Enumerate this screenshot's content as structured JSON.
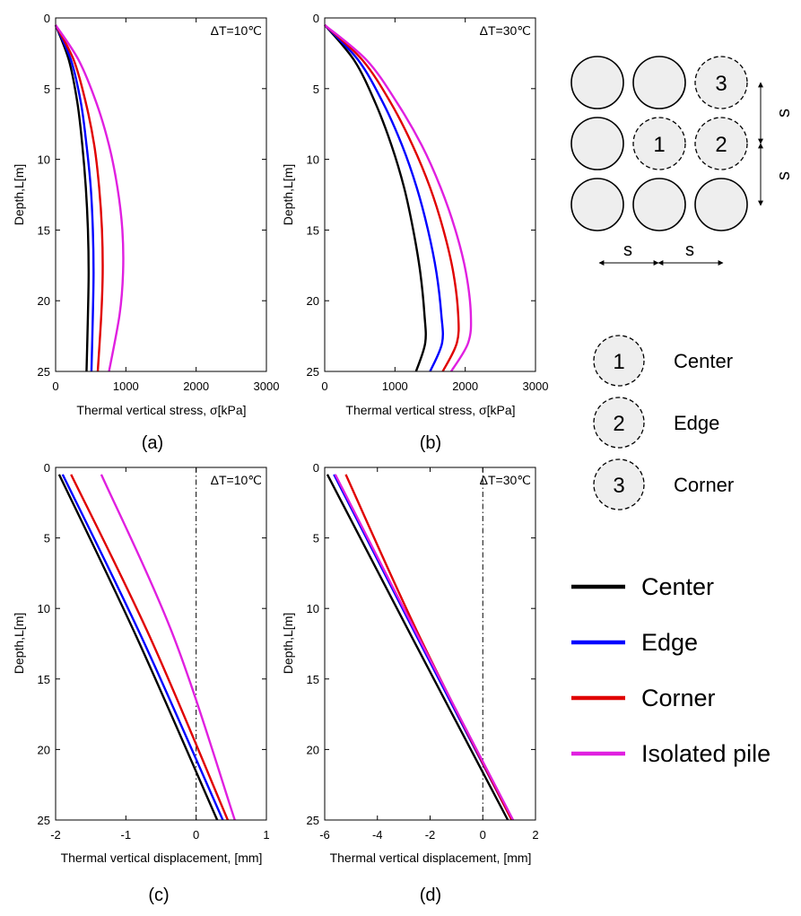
{
  "colors": {
    "Center": "#000000",
    "Edge": "#0000ff",
    "Corner": "#e00000",
    "Isolated pile": "#e020e0",
    "pile_fill": "#eeeeee"
  },
  "chart_data": [
    {
      "id": "a",
      "type": "line",
      "caption": "(a)",
      "annotation": "ΔT=10℃",
      "xlabel": "Thermal vertical stress, σ[kPa]",
      "ylabel": "Depth,L[m]",
      "xlim": [
        0,
        3000
      ],
      "ylim": [
        0,
        25
      ],
      "y_inverted": true,
      "xticks": [
        0,
        1000,
        2000,
        3000
      ],
      "yticks": [
        0,
        5,
        10,
        15,
        20,
        25
      ],
      "series": [
        {
          "name": "Center",
          "x": [
            0,
            190,
            310,
            380,
            430,
            460,
            470,
            460,
            440
          ],
          "y": [
            0.5,
            3,
            6,
            9,
            12,
            15,
            18,
            21,
            25
          ]
        },
        {
          "name": "Edge",
          "x": [
            0,
            220,
            360,
            440,
            500,
            530,
            540,
            530,
            510
          ],
          "y": [
            0.5,
            3,
            6,
            9,
            12,
            15,
            18,
            21,
            25
          ]
        },
        {
          "name": "Corner",
          "x": [
            0,
            260,
            430,
            550,
            620,
            660,
            670,
            650,
            600
          ],
          "y": [
            0.5,
            3,
            6,
            9,
            12,
            15,
            18,
            21,
            25
          ]
        },
        {
          "name": "Isolated pile",
          "x": [
            0,
            330,
            580,
            760,
            880,
            950,
            960,
            910,
            760
          ],
          "y": [
            0.5,
            3,
            6,
            9,
            12,
            15,
            18,
            21,
            25
          ]
        }
      ]
    },
    {
      "id": "b",
      "type": "line",
      "caption": "(b)",
      "annotation": "ΔT=30℃",
      "xlabel": "Thermal vertical stress, σ[kPa]",
      "ylabel": "Depth,L[m]",
      "xlim": [
        0,
        3000
      ],
      "ylim": [
        0,
        25
      ],
      "y_inverted": true,
      "xticks": [
        0,
        1000,
        2000,
        3000
      ],
      "yticks": [
        0,
        5,
        10,
        15,
        20,
        25
      ],
      "series": [
        {
          "name": "Center",
          "x": [
            0,
            420,
            720,
            950,
            1130,
            1260,
            1360,
            1420,
            1430,
            1300
          ],
          "y": [
            0.5,
            3,
            6,
            9,
            12,
            15,
            18,
            21,
            23,
            25
          ]
        },
        {
          "name": "Edge",
          "x": [
            0,
            480,
            830,
            1100,
            1310,
            1470,
            1590,
            1660,
            1670,
            1500
          ],
          "y": [
            0.5,
            3,
            6,
            9,
            12,
            15,
            18,
            21,
            23,
            25
          ]
        },
        {
          "name": "Corner",
          "x": [
            0,
            540,
            940,
            1250,
            1500,
            1690,
            1830,
            1900,
            1880,
            1680
          ],
          "y": [
            0.5,
            3,
            6,
            9,
            12,
            15,
            18,
            21,
            23,
            25
          ]
        },
        {
          "name": "Isolated pile",
          "x": [
            0,
            600,
            1030,
            1380,
            1650,
            1860,
            2010,
            2080,
            2040,
            1800
          ],
          "y": [
            0.5,
            3,
            6,
            9,
            12,
            15,
            18,
            21,
            23,
            25
          ]
        }
      ]
    },
    {
      "id": "c",
      "type": "line",
      "caption": "(c)",
      "annotation": "ΔT=10℃",
      "xlabel": "Thermal vertical displacement, [mm]",
      "ylabel": "Depth,L[m]",
      "xlim": [
        -2,
        1
      ],
      "ylim": [
        0,
        25
      ],
      "y_inverted": true,
      "xticks": [
        -2,
        -1,
        0,
        1
      ],
      "yticks": [
        0,
        5,
        10,
        15,
        20,
        25
      ],
      "zero_line": 0,
      "series": [
        {
          "name": "Center",
          "x": [
            -1.95,
            -0.85,
            0.3
          ],
          "y": [
            0.5,
            12,
            25
          ]
        },
        {
          "name": "Edge",
          "x": [
            -1.9,
            -0.78,
            0.38
          ],
          "y": [
            0.5,
            12,
            25
          ]
        },
        {
          "name": "Corner",
          "x": [
            -1.78,
            -0.66,
            0.45
          ],
          "y": [
            0.5,
            12,
            25
          ]
        },
        {
          "name": "Isolated pile",
          "x": [
            -1.35,
            -0.32,
            0.55
          ],
          "y": [
            0.5,
            12,
            25
          ]
        }
      ]
    },
    {
      "id": "d",
      "type": "line",
      "caption": "(d)",
      "annotation": "ΔT=30℃",
      "xlabel": "Thermal vertical displacement, [mm]",
      "ylabel": "Depth,L[m]",
      "xlim": [
        -6,
        2
      ],
      "ylim": [
        0,
        25
      ],
      "y_inverted": true,
      "xticks": [
        -6,
        -4,
        -2,
        0,
        2
      ],
      "yticks": [
        0,
        5,
        10,
        15,
        20,
        25
      ],
      "zero_line": 0,
      "series": [
        {
          "name": "Center",
          "x": [
            -5.9,
            -2.7,
            0.95
          ],
          "y": [
            0.5,
            12,
            25
          ]
        },
        {
          "name": "Edge",
          "x": [
            -5.65,
            -2.5,
            1.1
          ],
          "y": [
            0.5,
            12,
            25
          ]
        },
        {
          "name": "Corner",
          "x": [
            -5.2,
            -2.4,
            1.1
          ],
          "y": [
            0.5,
            12,
            25
          ]
        },
        {
          "name": "Isolated pile",
          "x": [
            -5.6,
            -2.45,
            1.15
          ],
          "y": [
            0.5,
            12,
            25
          ]
        }
      ]
    }
  ],
  "pile_diagram": {
    "piles": [
      {
        "dashed": false,
        "label": ""
      },
      {
        "dashed": false,
        "label": ""
      },
      {
        "dashed": true,
        "label": "3"
      },
      {
        "dashed": false,
        "label": ""
      },
      {
        "dashed": true,
        "label": "1"
      },
      {
        "dashed": true,
        "label": "2"
      },
      {
        "dashed": false,
        "label": ""
      },
      {
        "dashed": false,
        "label": ""
      },
      {
        "dashed": false,
        "label": ""
      }
    ],
    "spacing_label": "s"
  },
  "pile_legend": [
    {
      "num": "1",
      "label": "Center"
    },
    {
      "num": "2",
      "label": "Edge"
    },
    {
      "num": "3",
      "label": "Corner"
    }
  ],
  "line_legend": [
    "Center",
    "Edge",
    "Corner",
    "Isolated pile"
  ]
}
